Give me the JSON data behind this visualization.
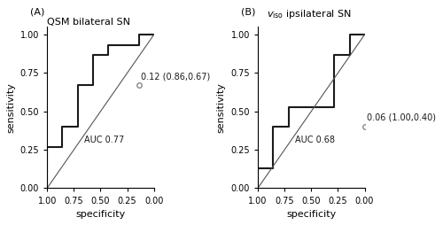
{
  "panel_A": {
    "title": "QSM bilateral SN",
    "label": "(A)",
    "auc_text": "AUC 0.77",
    "threshold_text": "0.12 (0.86,0.67)",
    "threshold_point_spec": 0.14,
    "threshold_point_sens": 0.67,
    "roc_spec": [
      1.0,
      1.0,
      0.86,
      0.86,
      0.71,
      0.71,
      0.57,
      0.57,
      0.43,
      0.43,
      0.14,
      0.14,
      0.0
    ],
    "roc_sens": [
      0.0,
      0.27,
      0.27,
      0.4,
      0.4,
      0.67,
      0.67,
      0.87,
      0.87,
      0.93,
      0.93,
      1.0,
      1.0
    ]
  },
  "panel_B": {
    "title": "v_iso ipsilateral SN",
    "label": "(B)",
    "auc_text": "AUC 0.68",
    "threshold_text": "0.06 (1.00,0.40)",
    "threshold_point_spec": 0.0,
    "threshold_point_sens": 0.4,
    "roc_spec": [
      1.0,
      1.0,
      0.86,
      0.86,
      0.71,
      0.71,
      0.29,
      0.29,
      0.14,
      0.14,
      0.0,
      0.0
    ],
    "roc_sens": [
      0.0,
      0.13,
      0.13,
      0.4,
      0.4,
      0.53,
      0.53,
      0.87,
      0.87,
      1.0,
      1.0,
      1.0
    ]
  },
  "line_color": "#1a1a1a",
  "diagonal_color": "#555555",
  "point_color": "#888888",
  "bg_color": "#ffffff",
  "fontsize_title": 8,
  "fontsize_label": 8,
  "fontsize_text": 7,
  "fontsize_tick": 7,
  "fontsize_axis": 8
}
